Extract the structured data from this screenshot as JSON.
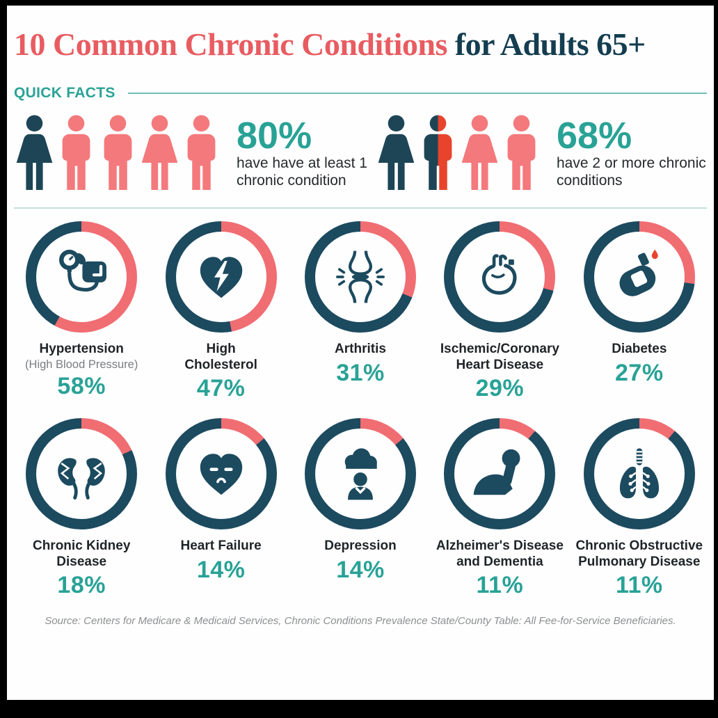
{
  "title": {
    "part1": "10 Common Chronic Conditions",
    "part2": " for Adults 65+"
  },
  "quick_facts": {
    "heading": "QUICK FACTS",
    "facts": [
      {
        "value": "80%",
        "line1": "have have at least 1",
        "line2": "chronic condition",
        "persons": [
          "female-navy",
          "male-coral",
          "male-coral",
          "female-coral",
          "male-coral"
        ]
      },
      {
        "value": "68%",
        "line1": "have 2 or more chronic",
        "line2": "conditions",
        "persons": [
          "female-navy",
          "male-split",
          "female-coral",
          "male-coral"
        ]
      }
    ]
  },
  "chart_data": {
    "type": "donut",
    "title": "10 Common Chronic Conditions for Adults 65+",
    "legend_note": "coral arc = prevalence %, rest of ring navy",
    "quick_facts": [
      {
        "value": 80,
        "text": "have have at least 1 chronic condition"
      },
      {
        "value": 68,
        "text": "have 2 or more chronic conditions"
      }
    ],
    "items": [
      {
        "label": "Hypertension",
        "lines": [
          "Hypertension"
        ],
        "sublabel": "(High Blood Pressure)",
        "pct": 58,
        "pct_label": "58%",
        "icon": "blood-pressure-icon"
      },
      {
        "label": "High Cholesterol",
        "lines": [
          "High",
          "Cholesterol"
        ],
        "pct": 47,
        "pct_label": "47%",
        "icon": "heart-attack-icon"
      },
      {
        "label": "Arthritis",
        "lines": [
          "Arthritis"
        ],
        "pct": 31,
        "pct_label": "31%",
        "icon": "joint-icon"
      },
      {
        "label": "Ischemic/Coronary Heart Disease",
        "lines": [
          "Ischemic/Coronary",
          "Heart Disease"
        ],
        "pct": 29,
        "pct_label": "29%",
        "icon": "heart-icon"
      },
      {
        "label": "Diabetes",
        "lines": [
          "Diabetes"
        ],
        "pct": 27,
        "pct_label": "27%",
        "icon": "glucose-meter-icon"
      },
      {
        "label": "Chronic Kidney Disease",
        "lines": [
          "Chronic Kidney",
          "Disease"
        ],
        "pct": 18,
        "pct_label": "18%",
        "icon": "kidneys-icon"
      },
      {
        "label": "Heart Failure",
        "lines": [
          "Heart Failure"
        ],
        "pct": 14,
        "pct_label": "14%",
        "icon": "weak-heart-icon"
      },
      {
        "label": "Depression",
        "lines": [
          "Depression"
        ],
        "pct": 14,
        "pct_label": "14%",
        "icon": "depression-icon"
      },
      {
        "label": "Alzheimer's Disease and Dementia",
        "lines": [
          "Alzheimer's Disease",
          "and Dementia"
        ],
        "pct": 11,
        "pct_label": "11%",
        "icon": "alzheimers-icon"
      },
      {
        "label": "Chronic Obstructive Pulmonary Disease",
        "lines": [
          "Chronic Obstructive",
          "Pulmonary Disease"
        ],
        "pct": 11,
        "pct_label": "11%",
        "icon": "lungs-icon"
      }
    ]
  },
  "source": "Source: Centers for Medicare & Medicaid Services, Chronic Conditions Prevalence State/County Table: All Fee-for-Service Beneficiaries.",
  "colors": {
    "coral": "#f06d72",
    "navy": "#1c4a5f",
    "teal": "#29a296",
    "accent_red": "#e8432c",
    "person_coral": "#f4797c",
    "person_navy": "#1d4556",
    "title_red": "#e85c61",
    "title_navy": "#143d50"
  }
}
